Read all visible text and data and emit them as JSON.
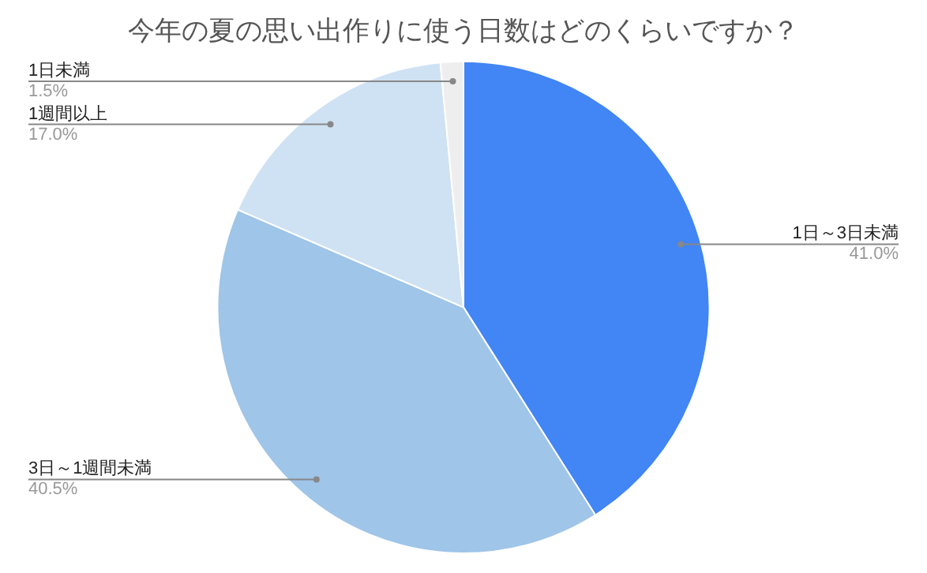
{
  "chart_data": {
    "type": "pie",
    "title": "今年の夏の思い出作りに使う日数はどのくらいですか？",
    "categories": [
      "1日～3日未満",
      "3日～1週間未満",
      "1週間以上",
      "1日未満"
    ],
    "values": [
      41.0,
      40.5,
      17.0,
      1.5
    ],
    "colors": [
      "#4285f4",
      "#9fc5e8",
      "#cfe2f3",
      "#eeeeee"
    ],
    "value_labels": [
      "41.0%",
      "40.5%",
      "17.0%",
      "1.5%"
    ],
    "legend": false
  }
}
